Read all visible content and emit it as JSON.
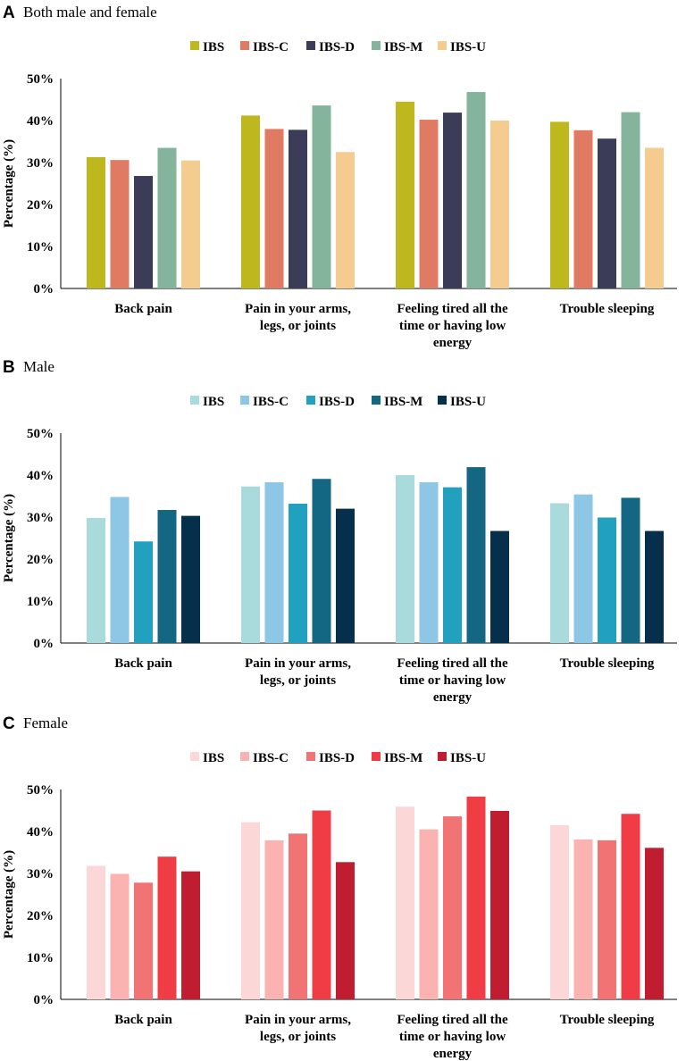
{
  "chart_data": [
    {
      "type": "bar",
      "panel_letter": "A",
      "title": "Both male and female",
      "ylabel": "Percentage (%)",
      "xlabel": "",
      "ylim": [
        0,
        50
      ],
      "yticks": [
        "0%",
        "10%",
        "20%",
        "30%",
        "40%",
        "50%"
      ],
      "legend_position": "top",
      "categories": [
        [
          "Back pain"
        ],
        [
          "Pain in your arms,",
          "legs, or joints"
        ],
        [
          "Feeling tired all the",
          "time or having low",
          "energy"
        ],
        [
          "Trouble sleeping"
        ]
      ],
      "series": [
        {
          "name": "IBS",
          "color": "#bfb71e",
          "values": [
            31.3,
            41.2,
            44.5,
            39.7
          ]
        },
        {
          "name": "IBS-C",
          "color": "#e07a62",
          "values": [
            30.6,
            38.0,
            40.2,
            37.7
          ]
        },
        {
          "name": "IBS-D",
          "color": "#3b3c58",
          "values": [
            26.8,
            37.8,
            41.9,
            35.7
          ]
        },
        {
          "name": "IBS-M",
          "color": "#84b59c",
          "values": [
            33.5,
            43.6,
            46.8,
            42.0
          ]
        },
        {
          "name": "IBS-U",
          "color": "#f4cc8f",
          "values": [
            30.5,
            32.5,
            40.0,
            33.5
          ]
        }
      ]
    },
    {
      "type": "bar",
      "panel_letter": "B",
      "title": "Male",
      "ylabel": "Percentage (%)",
      "xlabel": "",
      "ylim": [
        0,
        50
      ],
      "yticks": [
        "0%",
        "10%",
        "20%",
        "30%",
        "40%",
        "50%"
      ],
      "legend_position": "top",
      "categories": [
        [
          "Back pain"
        ],
        [
          "Pain in your arms,",
          "legs, or joints"
        ],
        [
          "Feeling tired all the",
          "time or having low",
          "energy"
        ],
        [
          "Trouble sleeping"
        ]
      ],
      "series": [
        {
          "name": "IBS",
          "color": "#a9dadc",
          "values": [
            29.8,
            37.3,
            40.0,
            33.3
          ]
        },
        {
          "name": "IBS-C",
          "color": "#8ec6e6",
          "values": [
            34.8,
            38.3,
            38.3,
            35.4
          ]
        },
        {
          "name": "IBS-D",
          "color": "#21a0c0",
          "values": [
            24.2,
            33.2,
            37.1,
            29.9
          ]
        },
        {
          "name": "IBS-M",
          "color": "#136783",
          "values": [
            31.7,
            39.1,
            41.9,
            34.6
          ]
        },
        {
          "name": "IBS-U",
          "color": "#052f4b",
          "values": [
            30.3,
            32.0,
            26.7,
            26.7
          ]
        }
      ]
    },
    {
      "type": "bar",
      "panel_letter": "C",
      "title": "Female",
      "ylabel": "Percentage (%)",
      "xlabel": "",
      "ylim": [
        0,
        50
      ],
      "yticks": [
        "0%",
        "10%",
        "20%",
        "30%",
        "40%",
        "50%"
      ],
      "legend_position": "top",
      "categories": [
        [
          "Back pain"
        ],
        [
          "Pain in your arms,",
          "legs, or joints"
        ],
        [
          "Feeling tired all the",
          "time or having low",
          "energy"
        ],
        [
          "Trouble sleeping"
        ]
      ],
      "series": [
        {
          "name": "IBS",
          "color": "#fcd7d7",
          "values": [
            31.8,
            42.2,
            45.9,
            41.5
          ]
        },
        {
          "name": "IBS-C",
          "color": "#fab3b1",
          "values": [
            29.9,
            37.9,
            40.5,
            38.1
          ]
        },
        {
          "name": "IBS-D",
          "color": "#f27373",
          "values": [
            27.8,
            39.5,
            43.6,
            37.9
          ]
        },
        {
          "name": "IBS-M",
          "color": "#ef3c45",
          "values": [
            34.0,
            45.0,
            48.3,
            44.2
          ]
        },
        {
          "name": "IBS-U",
          "color": "#c01d31",
          "values": [
            30.5,
            32.7,
            44.9,
            36.1
          ]
        }
      ]
    }
  ]
}
